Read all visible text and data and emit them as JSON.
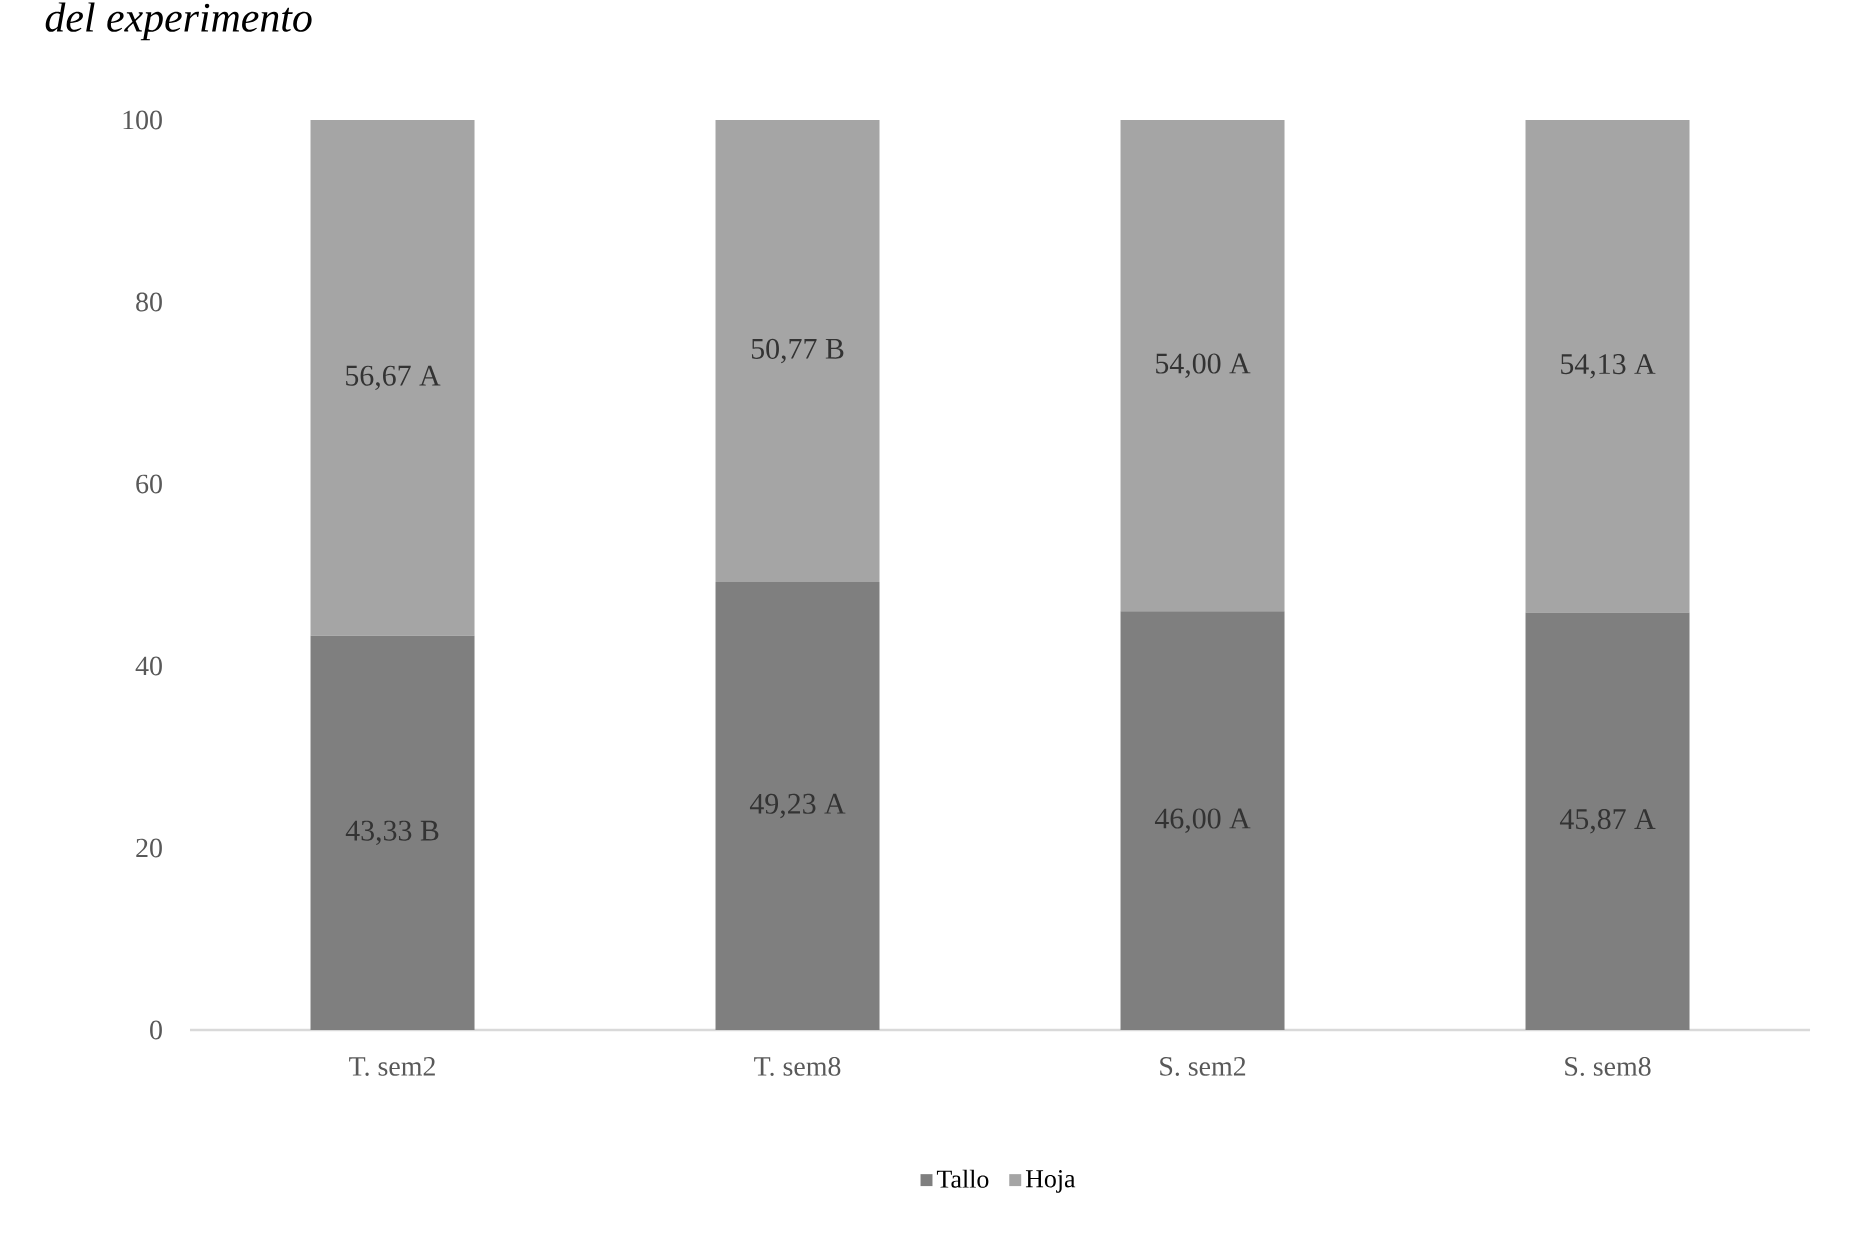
{
  "chart_data": {
    "type": "bar",
    "title": "*del experimento*",
    "stacked": true,
    "categories": [
      "T. sem2",
      "T. sem8",
      "S. sem2",
      "S. sem8"
    ],
    "series": [
      {
        "name": "Tallo",
        "color": "#7f7f7f",
        "values": [
          43.33,
          49.23,
          46.0,
          45.87
        ],
        "value_labels": [
          "43,33 B",
          "49,23 A",
          "46,00 A",
          "45,87 A"
        ]
      },
      {
        "name": "Hoja",
        "color": "#a5a5a5",
        "values": [
          56.67,
          50.77,
          54.0,
          54.13
        ],
        "value_labels": [
          "56,67 A",
          "50,77 B",
          "54,00 A",
          "54,13 A"
        ]
      }
    ],
    "ylim": [
      0,
      100
    ],
    "yticks": [
      0,
      20,
      40,
      60,
      80,
      100
    ],
    "legend": "bottom"
  }
}
